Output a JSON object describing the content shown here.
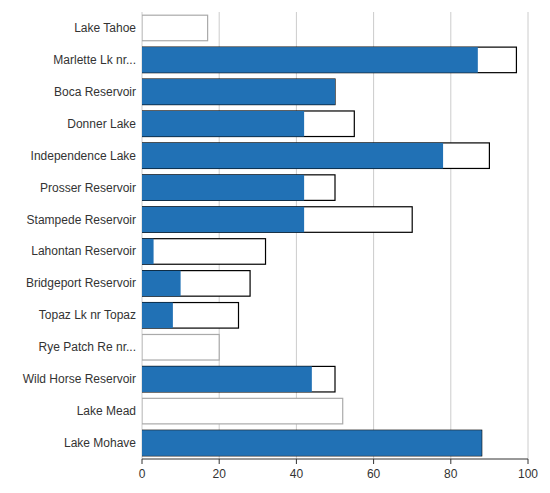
{
  "chart_data": {
    "type": "bar",
    "orientation": "horizontal",
    "categories": [
      "Lake Tahoe",
      "Marlette Lk nr...",
      "Boca Reservoir",
      "Donner Lake",
      "Independence Lake",
      "Prosser Reservoir",
      "Stampede Reservoir",
      "Lahontan Reservoir",
      "Bridgeport Reservoir",
      "Topaz Lk nr Topaz",
      "Rye Patch Re nr...",
      "Wild Horse Reservoir",
      "Lake Mead",
      "Lake Mohave"
    ],
    "series": [
      {
        "values": [
          17,
          97,
          50,
          55,
          90,
          50,
          70,
          32,
          28,
          25,
          20,
          50,
          52,
          88
        ],
        "colors": [
          "#aaaaaa",
          "#000000",
          "#000000",
          "#000000",
          "#000000",
          "#000000",
          "#000000",
          "#000000",
          "#000000",
          "#000000",
          "#aaaaaa",
          "#000000",
          "#aaaaaa",
          "#000000"
        ]
      },
      {
        "values": [
          0,
          87,
          50,
          42,
          78,
          42,
          42,
          3,
          10,
          8,
          0,
          44,
          0,
          88
        ],
        "color": "#2171b5"
      }
    ],
    "xlim": [
      0,
      100
    ],
    "xticks": [
      0,
      20,
      40,
      60,
      80,
      100
    ],
    "grid": true
  }
}
